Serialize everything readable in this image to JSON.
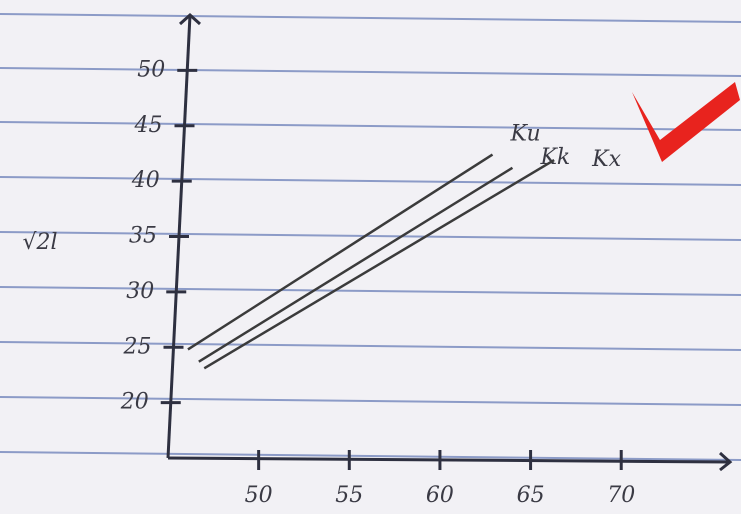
{
  "chart_data": {
    "type": "line",
    "y_label": "√2l",
    "xlim": [
      45,
      76
    ],
    "xticks": [
      50,
      55,
      60,
      65,
      70
    ],
    "ylim": [
      15,
      55
    ],
    "yticks": [
      20,
      25,
      30,
      35,
      40,
      45,
      50
    ],
    "grid": false,
    "series": [
      {
        "name": "Ku",
        "color": "#3b3b3b",
        "x": [
          46.1,
          62.9
        ],
        "values": [
          24.8,
          42.4
        ]
      },
      {
        "name": "Kk",
        "color": "#3b3b3b",
        "x": [
          46.7,
          64.0
        ],
        "values": [
          23.7,
          41.2
        ]
      },
      {
        "name": "Kx",
        "color": "#3b3b3b",
        "x": [
          47.0,
          66.3
        ],
        "values": [
          23.1,
          41.9
        ]
      }
    ]
  }
}
